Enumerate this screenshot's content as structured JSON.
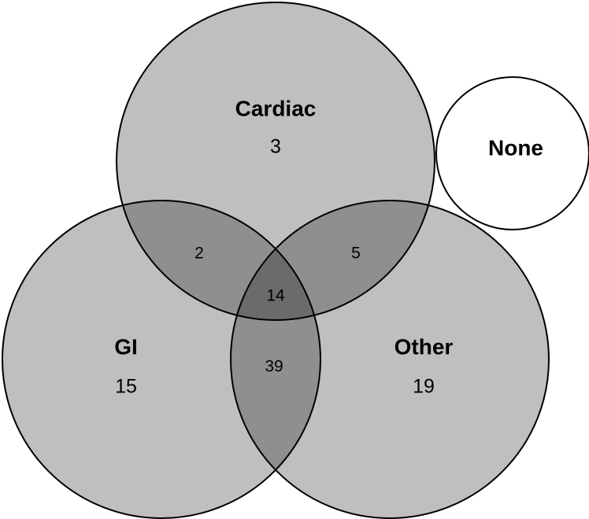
{
  "sets": [
    {
      "label": "Cardiac",
      "count": 3
    },
    {
      "label": "GI",
      "count": 15
    },
    {
      "label": "Other",
      "count": 19
    },
    {
      "label": "None"
    }
  ],
  "intersections": [
    {
      "sets": [
        "Cardiac",
        "GI"
      ],
      "count": 2
    },
    {
      "sets": [
        "Cardiac",
        "Other"
      ],
      "count": 5
    },
    {
      "sets": [
        "Cardiac",
        "GI",
        "Other"
      ],
      "count": 14
    },
    {
      "sets": [
        "GI",
        "Other"
      ],
      "count": 39
    }
  ]
}
